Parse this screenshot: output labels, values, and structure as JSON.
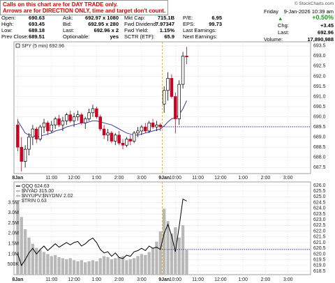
{
  "notes": [
    "Calls on this chart are for DAY TRADE only.",
    "Arrows are for DIRECTION ONLY, time and target don't count."
  ],
  "quote": {
    "rows": [
      [
        [
          "Open:",
          "690.63"
        ],
        [
          "Ask:",
          "692.97 x 1080"
        ],
        [
          "Mkt Cap:",
          "715.1B"
        ],
        [
          "P/E:",
          "6.95"
        ]
      ],
      [
        [
          "High:",
          "693.45"
        ],
        [
          "Bid:",
          "692.95 x 280"
        ],
        [
          "Fwd Dividend:",
          "7.97347"
        ],
        [
          "EPS:",
          "99.73"
        ]
      ],
      [
        [
          "Low:",
          "689.18"
        ],
        [
          "Last:",
          "692.96 x 2"
        ],
        [
          "Fwd Yield:",
          "1.15%"
        ],
        [
          "Last Earnings:"
        ]
      ],
      [
        [
          "Prev Close:",
          "689.51"
        ],
        [
          "Optionable:",
          "yes"
        ],
        [
          "SCTR (ETF):",
          "65.9"
        ],
        [
          "Next Earnings:"
        ]
      ]
    ]
  },
  "status": {
    "credit": "© StockCharts.com",
    "day": "Friday",
    "date": "9-Jan-2026 10:39 am",
    "change_pct": "+0.50%",
    "chg_label": "Chg:",
    "chg": "+3.45",
    "last_label": "Last:",
    "last": "692.96",
    "volume_label": "Volume:",
    "volume": "17,890,988"
  },
  "chart_data": [
    {
      "type": "candlestick",
      "legend": "SPY (5 min) 692.96",
      "up_color": "#000000",
      "down_color": "#cc0022",
      "open": [
        689.6,
        688.5,
        687.8,
        688.4,
        689.0,
        689.4,
        688.9,
        689.5,
        689.7,
        689.3,
        689.6,
        689.9,
        689.6,
        689.8,
        690.1,
        689.8,
        690.0,
        690.1,
        689.7,
        689.9,
        690.2,
        690.4,
        690.0,
        689.4,
        689.1,
        689.2,
        688.8,
        689.1,
        688.7,
        688.6,
        688.9,
        688.8,
        689.2,
        689.3,
        689.5,
        689.3,
        689.7,
        689.5,
        689.6,
        690.63,
        691.3,
        691.9,
        691.0,
        689.9,
        691.6,
        693.0
      ],
      "high": [
        689.9,
        689.0,
        688.6,
        689.2,
        689.6,
        689.5,
        689.6,
        689.9,
        689.8,
        689.8,
        690.0,
        690.1,
        690.0,
        690.2,
        690.3,
        690.2,
        690.3,
        690.2,
        690.0,
        690.4,
        690.6,
        690.5,
        690.1,
        689.6,
        689.4,
        689.3,
        689.2,
        689.3,
        688.9,
        689.0,
        689.1,
        689.3,
        689.5,
        689.6,
        689.7,
        689.8,
        689.9,
        689.8,
        689.7,
        691.5,
        692.2,
        692.1,
        691.2,
        691.8,
        693.2,
        693.45
      ],
      "low": [
        688.3,
        687.3,
        687.5,
        688.1,
        688.6,
        688.7,
        688.8,
        689.2,
        689.1,
        689.2,
        689.4,
        689.5,
        689.3,
        689.6,
        689.7,
        689.5,
        689.8,
        689.6,
        689.4,
        689.8,
        690.0,
        689.9,
        689.3,
        688.9,
        688.8,
        688.7,
        688.6,
        688.6,
        688.4,
        688.5,
        688.6,
        688.7,
        689.0,
        689.1,
        689.2,
        689.2,
        689.4,
        689.3,
        689.3,
        690.2,
        690.8,
        690.9,
        689.18,
        689.6,
        691.4,
        692.6
      ],
      "close": [
        688.5,
        687.8,
        688.4,
        689.0,
        689.4,
        688.9,
        689.5,
        689.7,
        689.3,
        689.6,
        689.9,
        689.6,
        689.8,
        690.1,
        689.8,
        690.0,
        690.1,
        689.7,
        689.9,
        690.2,
        690.4,
        690.0,
        689.4,
        689.1,
        689.2,
        688.8,
        689.1,
        688.7,
        688.6,
        688.9,
        688.8,
        689.2,
        689.3,
        689.5,
        689.3,
        689.7,
        689.5,
        689.6,
        689.5,
        691.3,
        691.9,
        691.0,
        689.9,
        691.6,
        693.0,
        692.96
      ],
      "ma": {
        "color": "#3a3aa8",
        "values": [
          689.8,
          689.5,
          689.2,
          689.1,
          689.1,
          689.0,
          689.05,
          689.1,
          689.15,
          689.2,
          689.3,
          689.35,
          689.4,
          689.5,
          689.55,
          689.6,
          689.65,
          689.7,
          689.7,
          689.75,
          689.8,
          689.8,
          689.75,
          689.7,
          689.65,
          689.6,
          689.5,
          689.4,
          689.3,
          689.2,
          689.15,
          689.1,
          689.1,
          689.15,
          689.2,
          689.25,
          689.3,
          689.35,
          689.4,
          689.55,
          689.75,
          689.9,
          689.95,
          690.1,
          690.4,
          690.8
        ]
      },
      "reference_line": 689.51,
      "reference_color": "#3333cc",
      "xlim": [
        -1,
        78
      ],
      "xticks": [
        {
          "value": 0,
          "label": "8Jan"
        },
        {
          "value": 9,
          "label": "11:00"
        },
        {
          "value": 15,
          "label": "12:00"
        },
        {
          "value": 21,
          "label": "1:00"
        },
        {
          "value": 27,
          "label": "2:00"
        },
        {
          "value": 33,
          "label": "3:00"
        },
        {
          "value": 39,
          "label": "9Jan"
        },
        {
          "value": 42,
          "label": "10:00"
        },
        {
          "value": 48,
          "label": "11:00"
        },
        {
          "value": 54,
          "label": "12:00"
        },
        {
          "value": 60,
          "label": "1:00"
        },
        {
          "value": 66,
          "label": "2:00"
        },
        {
          "value": 72,
          "label": "3:00"
        }
      ],
      "day_ticks": [
        0,
        6
      ],
      "session_break_tick": 6,
      "ylim": [
        687.2,
        693.7
      ],
      "yticks": [
        687.5,
        {
          "value": 688,
          "label": "688.0"
        },
        688.5,
        {
          "value": 689,
          "label": "689.0"
        },
        689.5,
        {
          "value": 690,
          "label": "690.0"
        },
        690.5,
        {
          "value": 691,
          "label": "691.0"
        },
        691.5,
        {
          "value": 692,
          "label": "692.0"
        },
        692.5,
        {
          "value": 693,
          "label": "693.0"
        },
        693.5
      ],
      "grid": true
    },
    {
      "type": "line",
      "indicators": [
        "$NYAD 315.00",
        "$NYUPV:$NYDNV 2.02",
        "$TRIN 0.63"
      ],
      "series": [
        {
          "name": "QQQ 624.63",
          "color": "#000000",
          "axis": "y2",
          "values": [
            620.0,
            619.0,
            619.5,
            620.1,
            620.5,
            620.0,
            620.4,
            620.7,
            620.3,
            620.6,
            620.9,
            620.6,
            620.8,
            621.0,
            620.8,
            621.0,
            621.1,
            620.7,
            620.9,
            621.2,
            621.4,
            621.0,
            620.4,
            620.1,
            620.2,
            619.8,
            620.1,
            619.7,
            619.6,
            619.9,
            619.8,
            620.2,
            620.3,
            620.5,
            620.3,
            620.7,
            620.5,
            620.6,
            620.4,
            621.8,
            622.6,
            621.6,
            620.2,
            622.4,
            624.8,
            624.63
          ]
        }
      ],
      "volume": {
        "color": "#b8b8b8",
        "values": [
          3500000,
          2800000,
          2200000,
          1800000,
          1500000,
          1300000,
          1200000,
          1100000,
          1000000,
          900000,
          950000,
          850000,
          800000,
          750000,
          800000,
          700000,
          650000,
          700000,
          600000,
          650000,
          700000,
          650000,
          800000,
          900000,
          850000,
          750000,
          800000,
          850000,
          900000,
          700000,
          750000,
          800000,
          900000,
          1000000,
          950000,
          1100000,
          1300000,
          1600000,
          2100000,
          3200000,
          2600000,
          2000000,
          2300000,
          1800000,
          2400000,
          1200000
        ]
      },
      "reference_line": 620.4,
      "reference_color": "#3333cc",
      "ylim": [
        0,
        4500000
      ],
      "yticks": [
        {
          "value": 500000,
          "label": "500K"
        },
        {
          "value": 1000000,
          "label": "1.0M"
        },
        {
          "value": 1500000,
          "label": "1.5M"
        },
        {
          "value": 2000000,
          "label": "2.0M"
        },
        {
          "value": 2500000,
          "label": "2.5M"
        },
        {
          "value": 3000000,
          "label": "3.0M"
        },
        {
          "value": 3500000,
          "label": "3.5M"
        }
      ],
      "y2lim": [
        618.2,
        626.3
      ],
      "y2ticks": [
        618.5,
        {
          "value": 619,
          "label": "619.0"
        },
        619.5,
        {
          "value": 620,
          "label": "620.0"
        },
        620.5,
        {
          "value": 621,
          "label": "621.0"
        },
        621.5,
        {
          "value": 622,
          "label": "622.0"
        },
        622.5,
        {
          "value": 623,
          "label": "623.0"
        },
        623.5,
        {
          "value": 624,
          "label": "624.0"
        },
        624.5,
        {
          "value": 625,
          "label": "625.0"
        },
        625.5,
        {
          "value": 626,
          "label": "626.0"
        }
      ],
      "grid": true
    }
  ]
}
